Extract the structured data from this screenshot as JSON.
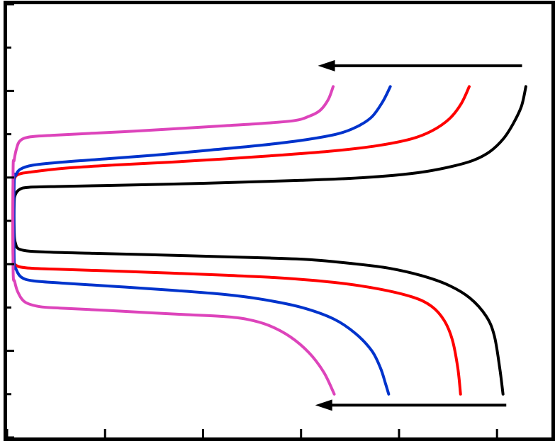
{
  "chart_data": {
    "type": "line",
    "title": "",
    "xlabel": "",
    "ylabel": "",
    "xlim": [
      0,
      100
    ],
    "ylim": [
      -100,
      100
    ],
    "grid": false,
    "legend": "none",
    "series": [
      {
        "color": "#000000",
        "branches": [
          {
            "x": [
              95.3,
              94.5,
              93.0,
              91.2,
              88.7,
              85.7,
              82.0,
              77.0,
              71.0,
              63.0,
              54.0,
              45.0,
              36.0,
              27.0,
              18.0,
              10.0,
              4.0,
              2.3,
              1.5,
              1.3
            ],
            "y": [
              62,
              53,
              45,
              38,
              32,
              28,
              25.3,
              22.8,
              21.0,
              19.6,
              18.7,
              18.0,
              17.3,
              16.8,
              16.3,
              15.9,
              15.5,
              14.5,
              12,
              8
            ]
          },
          {
            "x": [
              1.3,
              1.5,
              2.5,
              7.0,
              16.0,
              26.0,
              36.0,
              46.0,
              55.0,
              63.0,
              70.0,
              76.0,
              81.0,
              85.0,
              88.0,
              89.5,
              90.5,
              91.1
            ],
            "y": [
              -4,
              -10,
              -13.3,
              -14.4,
              -15.0,
              -15.6,
              -16.3,
              -17.0,
              -17.8,
              -19.6,
              -21.8,
              -25.2,
              -29.6,
              -35.6,
              -44,
              -53,
              -68,
              -80
            ]
          }
        ]
      },
      {
        "color": "#ff0000",
        "branches": [
          {
            "x": [
              84.9,
              83.4,
              81.2,
              78.0,
              74.2,
              68.0,
              60.0,
              50.0,
              40.0,
              30.0,
              20.0,
              11.0,
              4.5,
              2.0,
              1.3,
              1.1
            ],
            "y": [
              62,
              54,
              47,
              41.5,
              37.8,
              34.7,
              32.3,
              30.3,
              28.6,
              27.1,
              25.8,
              24.4,
              22.6,
              21.4,
              19,
              16
            ]
          },
          {
            "x": [
              1.1,
              1.4,
              3.5,
              10.0,
              20.0,
              30.0,
              40.0,
              50.0,
              60.0,
              68.0,
              74.5,
              78.0,
              80.3,
              81.8,
              82.8,
              83.3
            ],
            "y": [
              -16,
              -20,
              -21.7,
              -22.4,
              -23.2,
              -24.1,
              -25.1,
              -26.3,
              -28.4,
              -31.3,
              -35.2,
              -39.5,
              -46,
              -55,
              -68,
              -80
            ]
          }
        ]
      },
      {
        "color": "#0033cc",
        "branches": [
          {
            "x": [
              70.4,
              69.0,
              67.0,
              64.3,
              60.8,
              55.0,
              47.0,
              37.0,
              27.0,
              18.0,
              10.0,
              4.7,
              2.4,
              1.6,
              1.3
            ],
            "y": [
              62,
              55,
              48,
              43.5,
              40.2,
              37.5,
              35.0,
              32.6,
              30.3,
              28.6,
              27.1,
              25.7,
              23.8,
              21,
              18
            ]
          },
          {
            "x": [
              1.3,
              1.6,
              2.6,
              4.8,
              10.0,
              20.0,
              30.0,
              40.0,
              47.0,
              54.0,
              60.0,
              64.0,
              67.0,
              68.6,
              69.5,
              70.1
            ],
            "y": [
              -18,
              -22,
              -26,
              -27.7,
              -28.7,
              -30.3,
              -32.0,
              -34.0,
              -36.3,
              -39.9,
              -45.3,
              -52,
              -60,
              -68,
              -75,
              -80
            ]
          }
        ]
      },
      {
        "color": "#dd44bb",
        "branches": [
          {
            "x": [
              59.9,
              59.0,
              57.5,
              55.4,
              52.8,
              47.0,
              40.0,
              32.0,
              24.0,
              16.0,
              9.0,
              4.3,
              2.4,
              1.7,
              1.3,
              1.1
            ],
            "y": [
              62,
              56,
              51,
              48.2,
              46.3,
              45.0,
              43.9,
              42.7,
              41.5,
              40.5,
              39.6,
              38.8,
              37,
              33,
              28,
              23
            ]
          },
          {
            "x": [
              1.1,
              1.4,
              2.0,
              3.3,
              6.0,
              10.0,
              18.0,
              26.0,
              33.0,
              40.0,
              44.0,
              48.0,
              52.0,
              55.5,
              58.2,
              60.1
            ],
            "y": [
              -22,
              -28,
              -33,
              -37.5,
              -39.6,
              -40.3,
              -41.3,
              -42.4,
              -43.3,
              -44.2,
              -45.4,
              -48.2,
              -53.5,
              -61,
              -70,
              -80
            ]
          }
        ]
      }
    ],
    "arrows": [
      {
        "from": [
          94.6,
          71.6
        ],
        "to": [
          57.1,
          71.6
        ]
      },
      {
        "from": [
          91.7,
          -85.1
        ],
        "to": [
          56.6,
          -85.1
        ]
      }
    ],
    "x_ticks": [
      0,
      18,
      36,
      54,
      72,
      90
    ],
    "y_ticks": [
      100,
      80,
      60,
      40,
      20,
      0,
      -20,
      -40,
      -60,
      -80,
      -100
    ]
  }
}
